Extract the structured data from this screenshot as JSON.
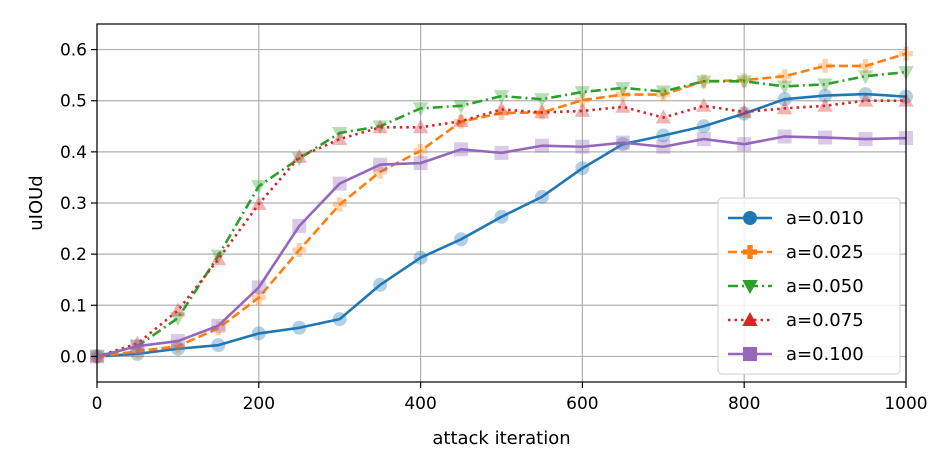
{
  "chart_data": {
    "type": "line",
    "xlabel": "attack iteration",
    "ylabel": "uIOUd",
    "xlim": [
      0,
      1000
    ],
    "ylim": [
      -0.05,
      0.65
    ],
    "xticks": [
      0,
      200,
      400,
      600,
      800,
      1000
    ],
    "xtick_labels": [
      "0",
      "200",
      "400",
      "600",
      "800",
      "1000"
    ],
    "yticks": [
      0.0,
      0.1,
      0.2,
      0.3,
      0.4,
      0.5,
      0.6
    ],
    "ytick_labels": [
      "0.0",
      "0.1",
      "0.2",
      "0.3",
      "0.4",
      "0.5",
      "0.6"
    ],
    "grid": true,
    "legend_position": "bottom-right",
    "x": [
      0,
      50,
      100,
      150,
      200,
      250,
      300,
      350,
      400,
      450,
      500,
      550,
      600,
      650,
      700,
      750,
      800,
      850,
      900,
      950,
      1000
    ],
    "series": [
      {
        "name": "a=0.010",
        "color": "#1f77b4",
        "linestyle": "solid",
        "marker": "circle",
        "values": [
          0.0,
          0.005,
          0.015,
          0.022,
          0.045,
          0.056,
          0.073,
          0.14,
          0.193,
          0.229,
          0.273,
          0.312,
          0.368,
          0.415,
          0.432,
          0.45,
          0.475,
          0.503,
          0.51,
          0.513,
          0.508
        ]
      },
      {
        "name": "a=0.025",
        "color": "#ff7f0e",
        "linestyle": "dashed",
        "marker": "plus",
        "values": [
          0.0,
          0.01,
          0.02,
          0.055,
          0.115,
          0.208,
          0.297,
          0.361,
          0.402,
          0.459,
          0.476,
          0.477,
          0.501,
          0.512,
          0.512,
          0.538,
          0.54,
          0.548,
          0.568,
          0.568,
          0.592
        ]
      },
      {
        "name": "a=0.050",
        "color": "#2ca02c",
        "linestyle": "dashdot",
        "marker": "triangle-down",
        "values": [
          0.0,
          0.02,
          0.075,
          0.197,
          0.333,
          0.387,
          0.437,
          0.45,
          0.485,
          0.49,
          0.509,
          0.503,
          0.517,
          0.525,
          0.518,
          0.538,
          0.538,
          0.528,
          0.532,
          0.548,
          0.556
        ]
      },
      {
        "name": "a=0.075",
        "color": "#d62728",
        "linestyle": "dotted",
        "marker": "triangle-up",
        "values": [
          0.0,
          0.025,
          0.09,
          0.19,
          0.298,
          0.39,
          0.425,
          0.448,
          0.448,
          0.46,
          0.483,
          0.477,
          0.48,
          0.488,
          0.467,
          0.49,
          0.478,
          0.485,
          0.49,
          0.5,
          0.5
        ]
      },
      {
        "name": "a=0.100",
        "color": "#9467bd",
        "linestyle": "solid",
        "marker": "square",
        "values": [
          0.0,
          0.02,
          0.03,
          0.06,
          0.135,
          0.255,
          0.338,
          0.375,
          0.378,
          0.405,
          0.398,
          0.412,
          0.41,
          0.418,
          0.41,
          0.425,
          0.415,
          0.43,
          0.428,
          0.425,
          0.427
        ]
      }
    ]
  }
}
